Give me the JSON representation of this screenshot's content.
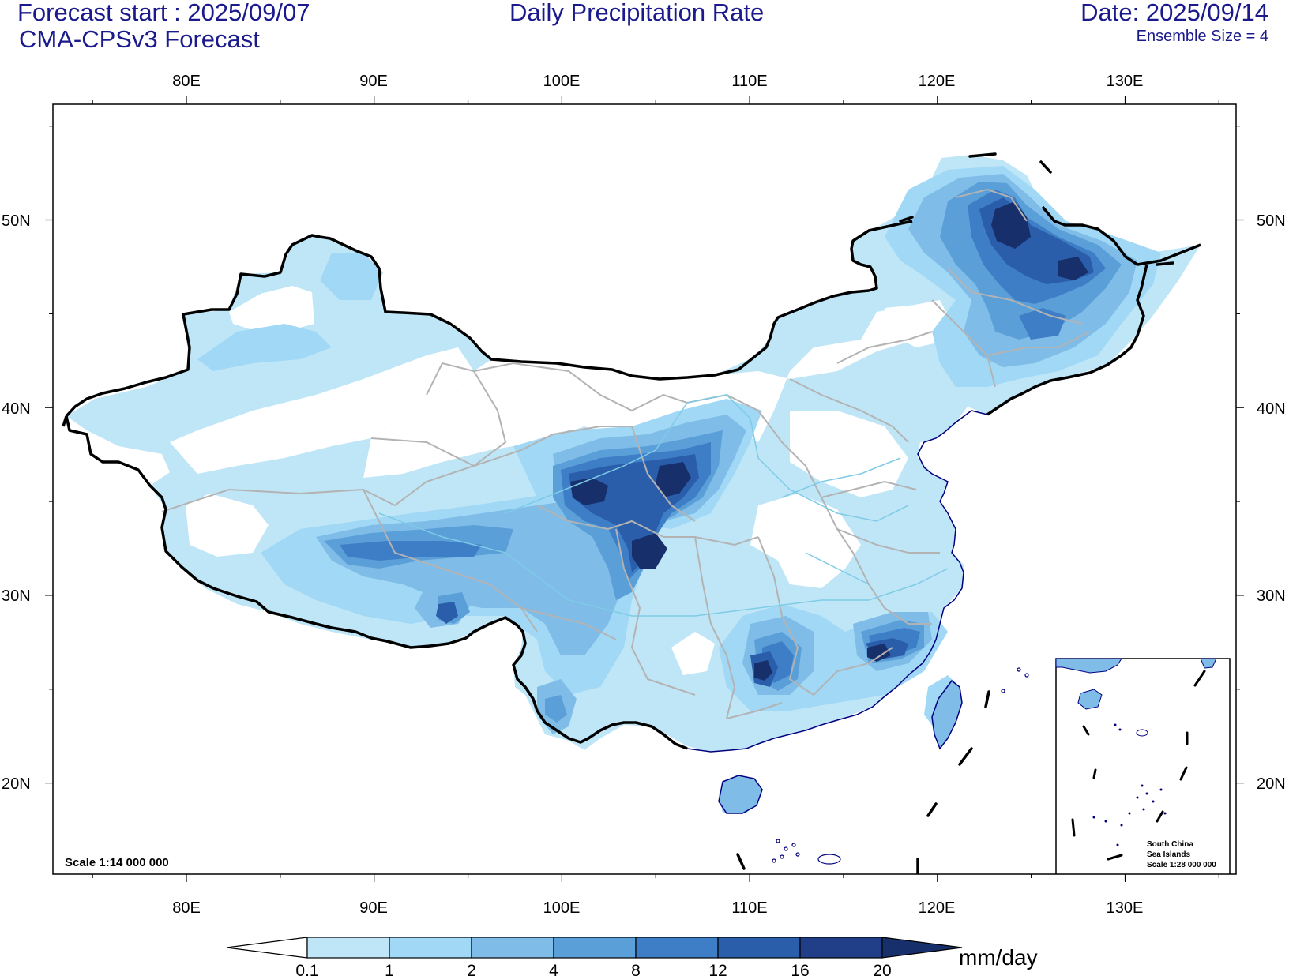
{
  "header": {
    "forecast_start": "Forecast start : 2025/09/07",
    "model": "CMA-CPSv3 Forecast",
    "title": "Daily Precipitation Rate",
    "date": "Date: 2025/09/14",
    "ensemble": "Ensemble Size = 4"
  },
  "axes": {
    "lon_labels": [
      "80E",
      "90E",
      "100E",
      "110E",
      "120E",
      "130E"
    ],
    "lat_labels": [
      "50N",
      "40N",
      "30N",
      "20N"
    ]
  },
  "scale_main": "Scale 1:14 000 000",
  "inset": {
    "title_line1": "South China",
    "title_line2": "Sea Islands",
    "scale": "Scale 1:28 000 000"
  },
  "colorbar": {
    "unit": "mm/day",
    "levels": [
      "0.1",
      "1",
      "2",
      "4",
      "8",
      "12",
      "16",
      "20"
    ],
    "colors": [
      "#ffffff",
      "#bfe6f7",
      "#a0d8f5",
      "#7fbde8",
      "#5a9fd8",
      "#3e7ec6",
      "#2a5daa",
      "#203f88",
      "#17306b"
    ]
  },
  "colors": {
    "border": "#000000",
    "provinces": "#b3b3b3",
    "rivers": "#7ecbe6",
    "coast": "#00007f",
    "text": "#1a1a8c"
  }
}
